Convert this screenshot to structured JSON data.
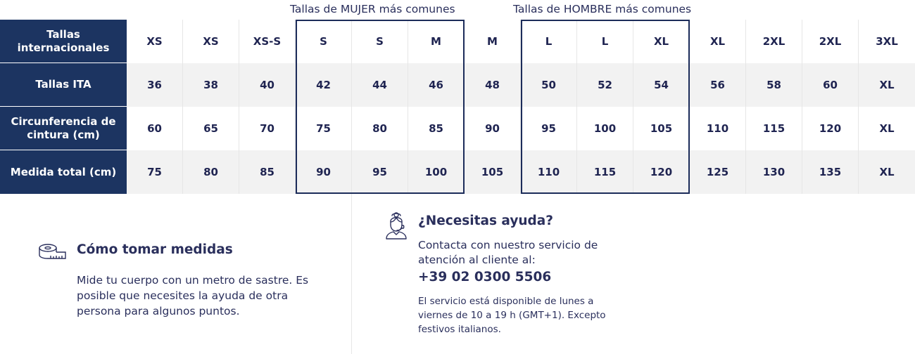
{
  "groups": {
    "women_label": "Tallas de MUJER más comunes",
    "men_label": "Tallas de HOMBRE más comunes"
  },
  "table": {
    "rows": [
      {
        "label": "Tallas internacionales",
        "cells": [
          "XS",
          "XS",
          "XS-S",
          "S",
          "S",
          "M",
          "M",
          "L",
          "L",
          "XL",
          "XL",
          "2XL",
          "2XL",
          "3XL"
        ]
      },
      {
        "label": "Tallas ITA",
        "cells": [
          "36",
          "38",
          "40",
          "42",
          "44",
          "46",
          "48",
          "50",
          "52",
          "54",
          "56",
          "58",
          "60",
          "XL"
        ]
      },
      {
        "label": "Circunferencia de cintura (cm)",
        "cells": [
          "60",
          "65",
          "70",
          "75",
          "80",
          "85",
          "90",
          "95",
          "100",
          "105",
          "110",
          "115",
          "120",
          "XL"
        ]
      },
      {
        "label": "Medida total (cm)",
        "cells": [
          "75",
          "80",
          "85",
          "90",
          "95",
          "100",
          "105",
          "110",
          "115",
          "120",
          "125",
          "130",
          "135",
          "XL"
        ]
      }
    ]
  },
  "measure": {
    "icon": "measuring-tape-icon",
    "title": "Cómo tomar medidas",
    "text": "Mide tu cuerpo con un metro de sastre. Es posible que necesites la ayuda de otra persona para algunos puntos."
  },
  "help": {
    "icon": "support-agent-icon",
    "title": "¿Necesitas ayuda?",
    "text": "Contacta con nuestro servicio de atención al cliente al:",
    "phone": "+39 02 0300 5506",
    "hours": "El servicio está disponible de lunes a viernes de 10 a 19 h (GMT+1). Excepto festivos italianos."
  },
  "colors": {
    "header_bg": "#1c3461",
    "text": "#1f2451",
    "alt_row": "#f2f2f2"
  }
}
